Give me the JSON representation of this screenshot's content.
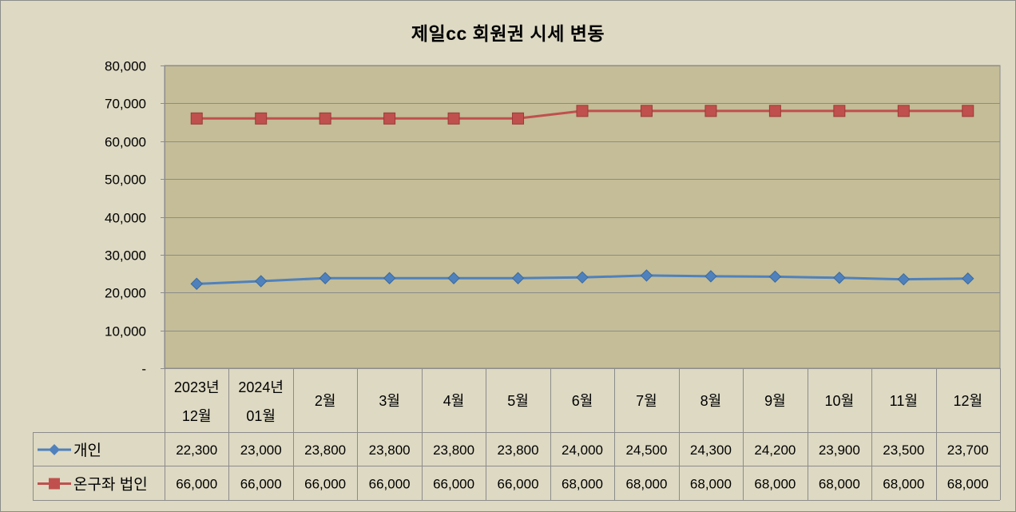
{
  "chart_data": {
    "type": "line",
    "title": "제일cc 회원권 시세 변동",
    "categories": [
      [
        "2023년",
        "12월"
      ],
      [
        "2024년",
        "01월"
      ],
      [
        "2월"
      ],
      [
        "3월"
      ],
      [
        "4월"
      ],
      [
        "5월"
      ],
      [
        "6월"
      ],
      [
        "7월"
      ],
      [
        "8월"
      ],
      [
        "9월"
      ],
      [
        "10월"
      ],
      [
        "11월"
      ],
      [
        "12월"
      ]
    ],
    "series": [
      {
        "name": "개인",
        "color": "#4f81bd",
        "marker": "diamond",
        "values": [
          22300,
          23000,
          23800,
          23800,
          23800,
          23800,
          24000,
          24500,
          24300,
          24200,
          23900,
          23500,
          23700
        ],
        "labels": [
          "22,300",
          "23,000",
          "23,800",
          "23,800",
          "23,800",
          "23,800",
          "24,000",
          "24,500",
          "24,300",
          "24,200",
          "23,900",
          "23,500",
          "23,700"
        ]
      },
      {
        "name": "온구좌 법인",
        "color": "#c0504d",
        "marker": "square",
        "values": [
          66000,
          66000,
          66000,
          66000,
          66000,
          66000,
          68000,
          68000,
          68000,
          68000,
          68000,
          68000,
          68000
        ],
        "labels": [
          "66,000",
          "66,000",
          "66,000",
          "66,000",
          "66,000",
          "66,000",
          "68,000",
          "68,000",
          "68,000",
          "68,000",
          "68,000",
          "68,000",
          "68,000"
        ]
      }
    ],
    "ylim": [
      0,
      80000
    ],
    "yticks": [
      0,
      10000,
      20000,
      30000,
      40000,
      50000,
      60000,
      70000,
      80000
    ],
    "ytick_labels": [
      "-",
      "10,000",
      "20,000",
      "30,000",
      "40,000",
      "50,000",
      "60,000",
      "70,000",
      "80,000"
    ],
    "grid": true,
    "legend": "data-table",
    "plot_background": "#c4bd97",
    "chart_background": "#ddd9c3"
  }
}
